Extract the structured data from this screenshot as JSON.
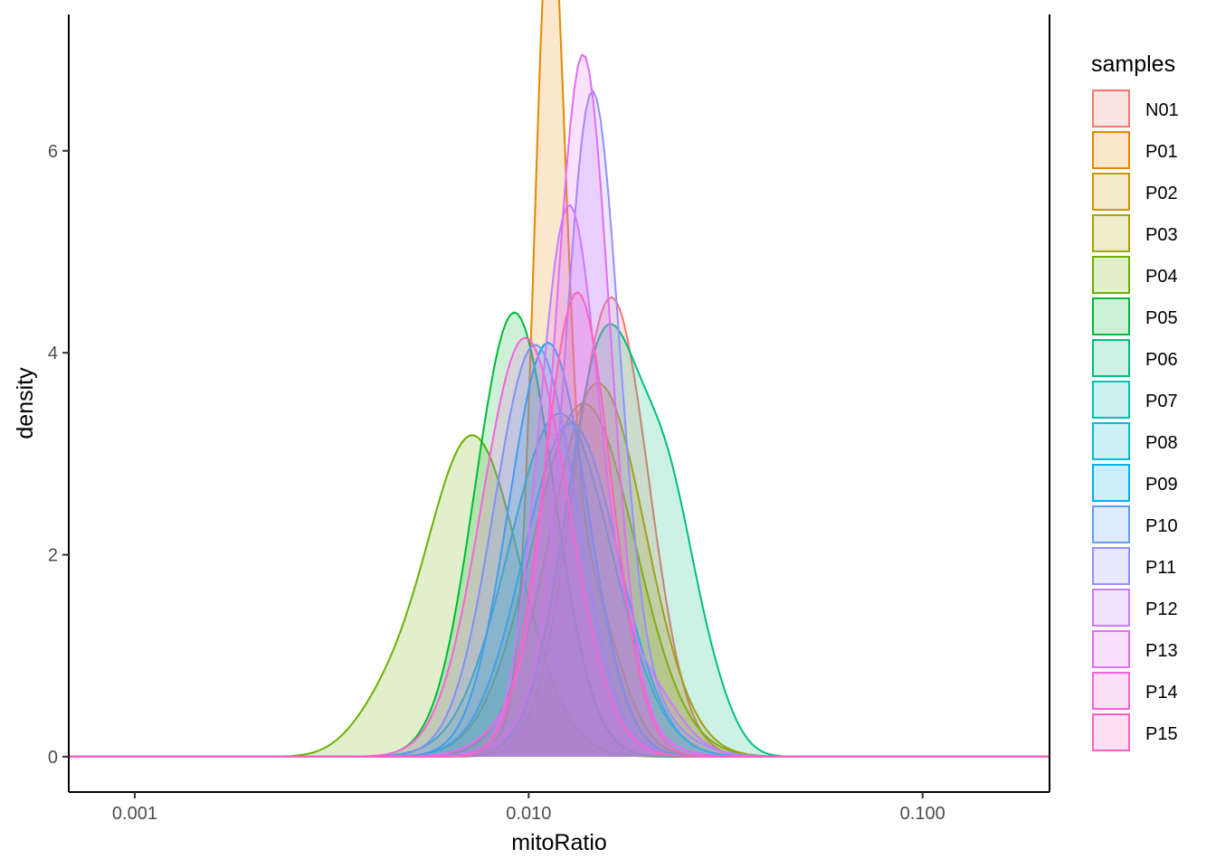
{
  "chart_data": {
    "type": "area",
    "subtype": "density",
    "xlabel": "mitoRatio",
    "ylabel": "density",
    "x_scale": "log10",
    "xlim": [
      0.00068,
      0.21
    ],
    "ylim": [
      -0.35,
      7.35
    ],
    "x_ticks": [
      0.001,
      0.01,
      0.1
    ],
    "x_tick_labels": [
      "0.001",
      "0.010",
      "0.100"
    ],
    "y_ticks": [
      0,
      2,
      4,
      6
    ],
    "y_tick_labels": [
      "0",
      "2",
      "4",
      "6"
    ],
    "grid": false,
    "fill_opacity": 0.2,
    "legend": {
      "title": "samples",
      "position": "right"
    },
    "series": [
      {
        "name": "N01",
        "color": "#F8766D",
        "peaks": [
          [
            0.0162,
            4.55,
            0.095
          ]
        ]
      },
      {
        "name": "P01",
        "color": "#E58700",
        "peaks": [
          [
            0.0113,
            7.0,
            0.038
          ],
          [
            0.0132,
            2.0,
            0.09
          ]
        ]
      },
      {
        "name": "P02",
        "color": "#C99800",
        "peaks": [
          [
            0.015,
            3.7,
            0.12
          ]
        ]
      },
      {
        "name": "P03",
        "color": "#A3A500",
        "peaks": [
          [
            0.0138,
            3.5,
            0.13
          ]
        ]
      },
      {
        "name": "P04",
        "color": "#6BB100",
        "peaks": [
          [
            0.0072,
            3.18,
            0.12
          ],
          [
            0.0042,
            0.3,
            0.08
          ]
        ]
      },
      {
        "name": "P05",
        "color": "#00BA38",
        "peaks": [
          [
            0.0092,
            4.4,
            0.1
          ]
        ]
      },
      {
        "name": "P06",
        "color": "#00BF7D",
        "peaks": [
          [
            0.0158,
            4.2,
            0.1
          ],
          [
            0.023,
            1.7,
            0.065
          ],
          [
            0.029,
            0.5,
            0.06
          ]
        ]
      },
      {
        "name": "P07",
        "color": "#00C0AF",
        "peaks": [
          [
            0.012,
            3.4,
            0.13
          ]
        ]
      },
      {
        "name": "P08",
        "color": "#00BCD8",
        "peaks": [
          [
            0.0128,
            3.3,
            0.12
          ]
        ]
      },
      {
        "name": "P09",
        "color": "#00B0F6",
        "peaks": [
          [
            0.0112,
            4.1,
            0.1
          ]
        ]
      },
      {
        "name": "P10",
        "color": "#619CFF",
        "peaks": [
          [
            0.0104,
            4.08,
            0.105
          ]
        ]
      },
      {
        "name": "P11",
        "color": "#9590FF",
        "peaks": [
          [
            0.0145,
            5.6,
            0.065
          ],
          [
            0.015,
            1.0,
            0.13
          ]
        ]
      },
      {
        "name": "P12",
        "color": "#C77CFF",
        "peaks": [
          [
            0.0126,
            5.35,
            0.075
          ],
          [
            0.019,
            0.8,
            0.09
          ]
        ]
      },
      {
        "name": "P13",
        "color": "#E76BF3",
        "peaks": [
          [
            0.0138,
            5.8,
            0.065
          ],
          [
            0.0128,
            1.2,
            0.12
          ]
        ]
      },
      {
        "name": "P14",
        "color": "#FA62DB",
        "peaks": [
          [
            0.0098,
            4.15,
            0.11
          ]
        ]
      },
      {
        "name": "P15",
        "color": "#FF62BC",
        "peaks": [
          [
            0.0133,
            4.6,
            0.085
          ]
        ]
      }
    ]
  }
}
